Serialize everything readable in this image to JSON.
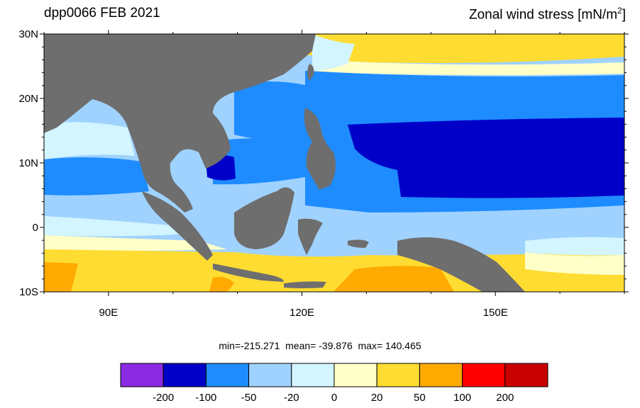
{
  "title": {
    "left": "dpp0066 FEB 2021",
    "right_text": "Zonal wind stress [mN/m",
    "right_sup": "2",
    "right_close": "]"
  },
  "axes": {
    "lat_labels": [
      "30N",
      "20N",
      "10N",
      "0",
      "10S"
    ],
    "lon_labels": [
      "90E",
      "120E",
      "150E"
    ],
    "lat_range": [
      -10,
      30
    ],
    "lon_range": [
      80,
      170
    ]
  },
  "stats": {
    "min_label": "min=",
    "min": "-215.271",
    "mean_label": "mean=",
    "mean": "-39.876",
    "max_label": "max=",
    "max": "140.465"
  },
  "colorbar": {
    "colors": [
      "#8a2be2",
      "#0000c8",
      "#1e8cff",
      "#a0d2ff",
      "#d2f5ff",
      "#ffffc8",
      "#ffdc32",
      "#ffaa00",
      "#ff0000",
      "#c80000"
    ],
    "tick_labels": [
      "-200",
      "-100",
      "-50",
      "-20",
      "0",
      "20",
      "50",
      "100",
      "200"
    ]
  },
  "land_color": "#6e6e6e"
}
